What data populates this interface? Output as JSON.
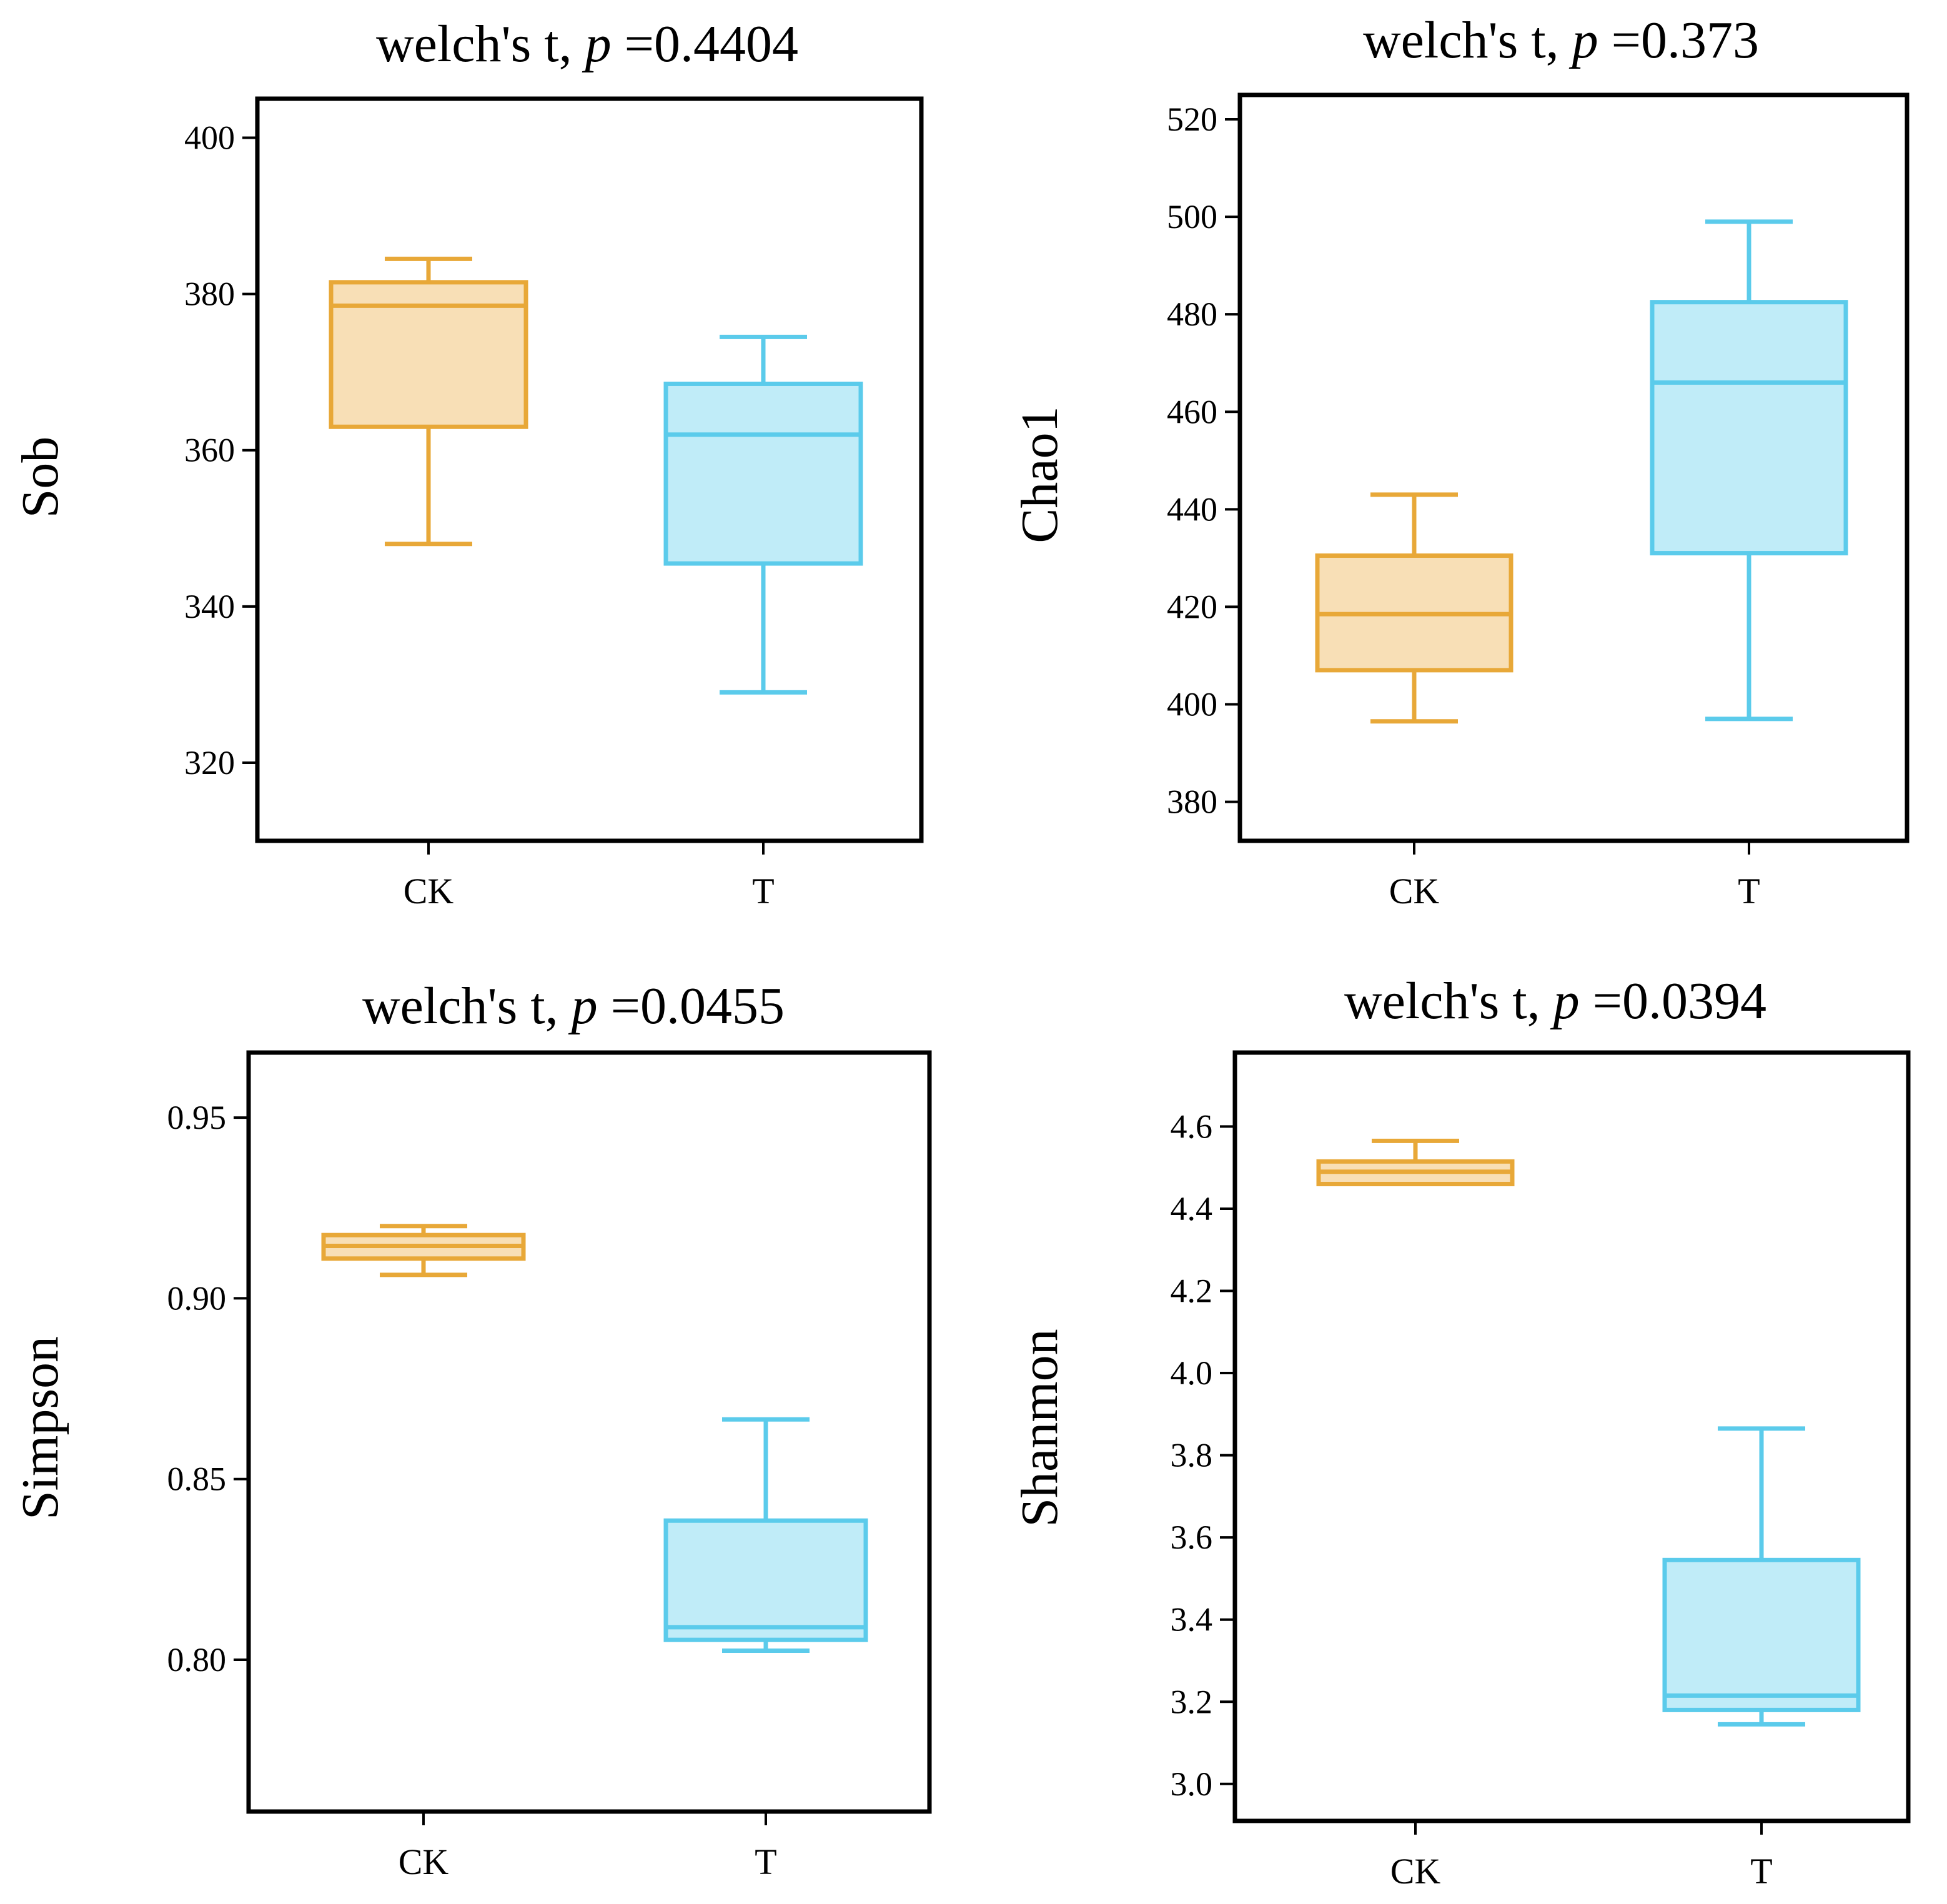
{
  "colors": {
    "ck_stroke": "#E8A838",
    "ck_fill": "#F8DFB6",
    "t_stroke": "#5BCBEB",
    "t_fill": "#C0ECF8",
    "axis": "#000000"
  },
  "chart_data": [
    {
      "type": "box",
      "title_prefix": "welch's t, ",
      "title_p": "p",
      "title_value": " =0.4404",
      "ylabel": "Sob",
      "categories": [
        "CK",
        "T"
      ],
      "ylim": [
        310,
        405
      ],
      "yticks": [
        320,
        340,
        360,
        380,
        400
      ],
      "ytick_labels": [
        "320",
        "340",
        "360",
        "380",
        "400"
      ],
      "boxes": [
        {
          "group": "CK",
          "whisker_low": 348,
          "q1": 363,
          "median": 378.5,
          "q3": 381.5,
          "whisker_high": 384.5
        },
        {
          "group": "T",
          "whisker_low": 329,
          "q1": 345.5,
          "median": 362,
          "q3": 368.5,
          "whisker_high": 374.5
        }
      ]
    },
    {
      "type": "box",
      "title_prefix": "welch's t, ",
      "title_p": "p",
      "title_value": " =0.373",
      "ylabel": "Chao1",
      "categories": [
        "CK",
        "T"
      ],
      "ylim": [
        372,
        525
      ],
      "yticks": [
        380,
        400,
        420,
        440,
        460,
        480,
        500,
        520
      ],
      "ytick_labels": [
        "380",
        "400",
        "420",
        "440",
        "460",
        "480",
        "500",
        "520"
      ],
      "boxes": [
        {
          "group": "CK",
          "whisker_low": 396.5,
          "q1": 407,
          "median": 418.5,
          "q3": 430.5,
          "whisker_high": 443
        },
        {
          "group": "T",
          "whisker_low": 397,
          "q1": 431,
          "median": 466,
          "q3": 482.5,
          "whisker_high": 499
        }
      ]
    },
    {
      "type": "box",
      "title_prefix": "welch's t, ",
      "title_p": "p",
      "title_value": " =0.0455",
      "ylabel": "Simpson",
      "categories": [
        "CK",
        "T"
      ],
      "ylim": [
        0.758,
        0.968
      ],
      "yticks": [
        0.8,
        0.85,
        0.9,
        0.95
      ],
      "ytick_labels": [
        "0.80",
        "0.85",
        "0.90",
        "0.95"
      ],
      "boxes": [
        {
          "group": "CK",
          "whisker_low": 0.9065,
          "q1": 0.911,
          "median": 0.9145,
          "q3": 0.9175,
          "whisker_high": 0.92
        },
        {
          "group": "T",
          "whisker_low": 0.8025,
          "q1": 0.8055,
          "median": 0.809,
          "q3": 0.8385,
          "whisker_high": 0.8665
        }
      ]
    },
    {
      "type": "box",
      "title_prefix": "welch's t, ",
      "title_p": "p",
      "title_value": " =0.0394",
      "ylabel": "Shanmon",
      "categories": [
        "CK",
        "T"
      ],
      "ylim": [
        2.91,
        4.78
      ],
      "yticks": [
        3.0,
        3.2,
        3.4,
        3.6,
        3.8,
        4.0,
        4.2,
        4.4,
        4.6
      ],
      "ytick_labels": [
        "3.0",
        "3.2",
        "3.4",
        "3.6",
        "3.8",
        "4.0",
        "4.2",
        "4.4",
        "4.6"
      ],
      "boxes": [
        {
          "group": "CK",
          "whisker_low": 4.46,
          "q1": 4.46,
          "median": 4.49,
          "q3": 4.515,
          "whisker_high": 4.565
        },
        {
          "group": "T",
          "whisker_low": 3.145,
          "q1": 3.18,
          "median": 3.215,
          "q3": 3.545,
          "whisker_high": 3.865
        }
      ]
    }
  ]
}
